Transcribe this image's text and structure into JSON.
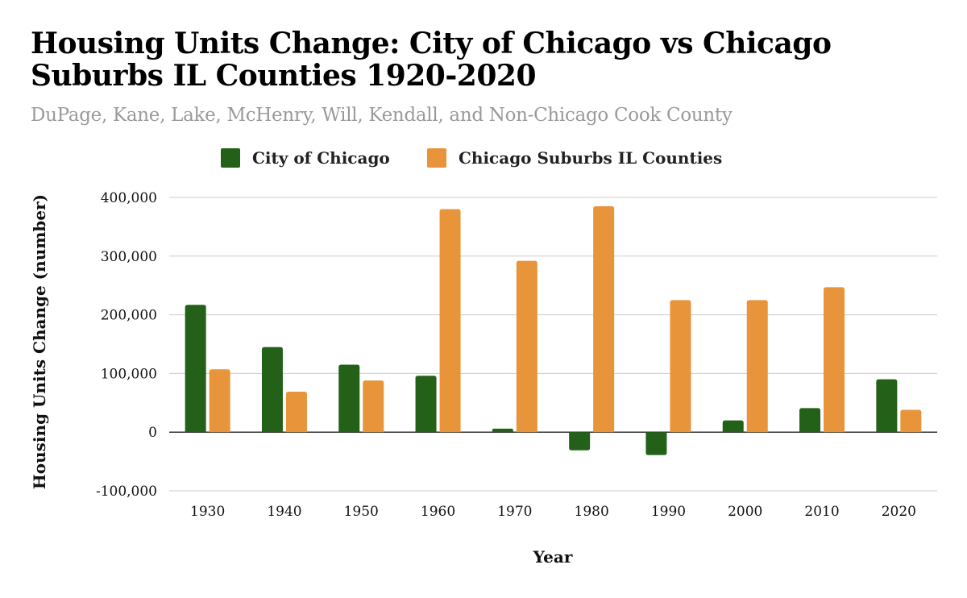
{
  "chart_data": {
    "type": "bar",
    "title": "Housing Units Change: City of Chicago vs Chicago Suburbs IL Counties 1920-2020",
    "subtitle": "DuPage, Kane, Lake, McHenry, Will, Kendall, and Non-Chicago Cook County",
    "xlabel": "Year",
    "ylabel": "Housing Units Change (number)",
    "categories": [
      "1930",
      "1940",
      "1950",
      "1960",
      "1970",
      "1980",
      "1990",
      "2000",
      "2010",
      "2020"
    ],
    "series": [
      {
        "name": "City of Chicago",
        "color": "#236119",
        "values": [
          217000,
          145000,
          115000,
          96000,
          6000,
          -31000,
          -39000,
          20000,
          41000,
          90000
        ]
      },
      {
        "name": "Chicago Suburbs IL Counties",
        "color": "#e8943a",
        "values": [
          107000,
          69000,
          88000,
          380000,
          292000,
          385000,
          225000,
          225000,
          247000,
          38000
        ]
      }
    ],
    "ylim": [
      -100000,
      400000
    ],
    "yticks": [
      -100000,
      0,
      100000,
      200000,
      300000,
      400000
    ],
    "ytick_labels": [
      "-100,000",
      "0",
      "100,000",
      "200,000",
      "300,000",
      "400,000"
    ],
    "grid": true,
    "legend_position": "top-center"
  }
}
